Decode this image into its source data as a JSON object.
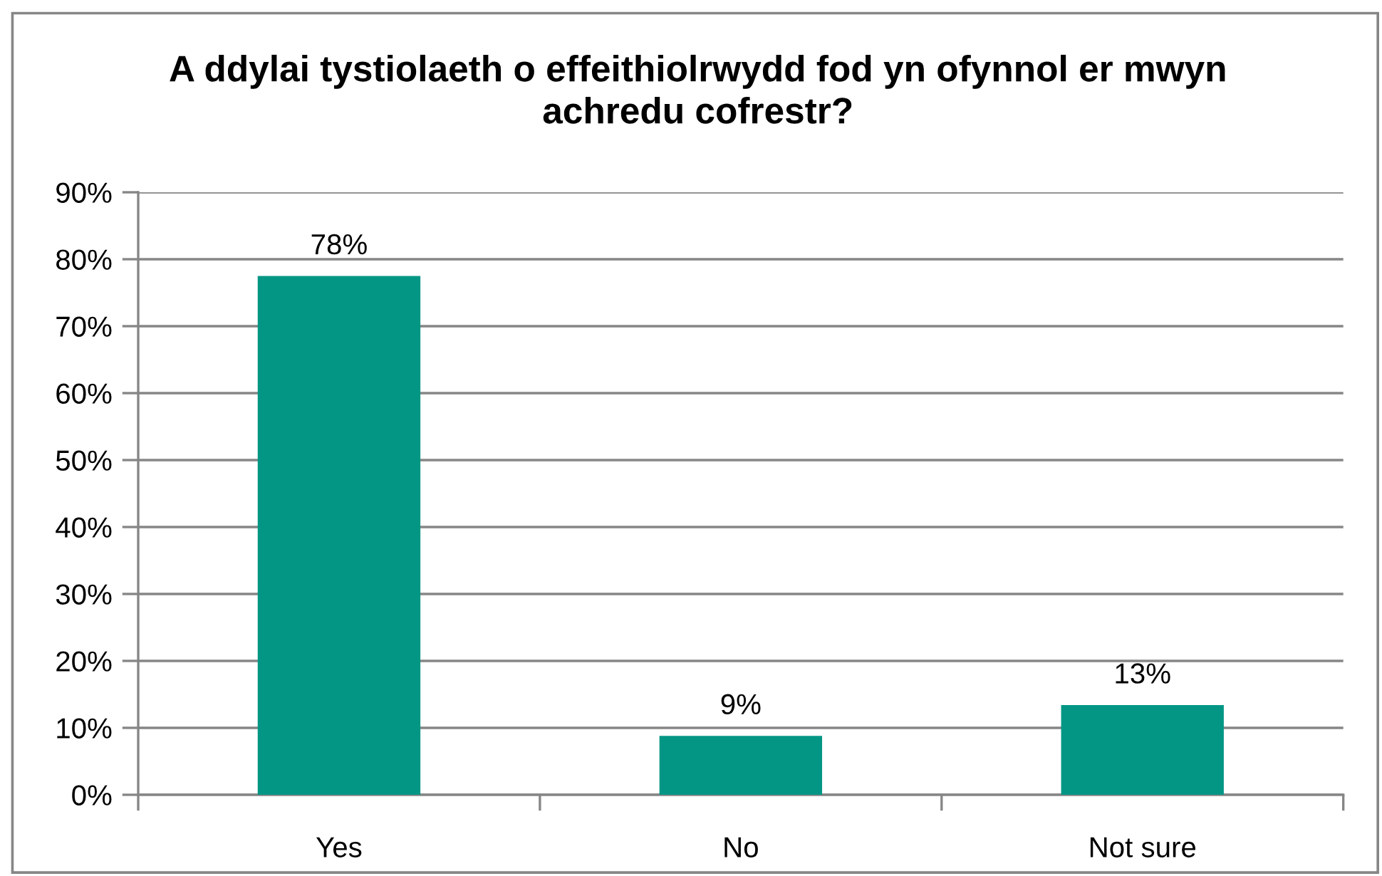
{
  "chart_data": {
    "type": "bar",
    "title": "A ddylai tystiolaeth o effeithiolrwydd fod yn ofynnol er mwyn\nachredu cofrestr?",
    "categories": [
      "Yes",
      "No",
      "Not sure"
    ],
    "values": [
      77.5,
      8.8,
      13.4
    ],
    "value_labels": [
      "78%",
      "9%",
      "13%"
    ],
    "color": "#049685",
    "ylim": [
      0,
      90
    ],
    "yticks": [
      {
        "value": 0,
        "label": "0%"
      },
      {
        "value": 10,
        "label": "10%"
      },
      {
        "value": 20,
        "label": "20%"
      },
      {
        "value": 30,
        "label": "30%"
      },
      {
        "value": 40,
        "label": "40%"
      },
      {
        "value": 50,
        "label": "50%"
      },
      {
        "value": 60,
        "label": "60%"
      },
      {
        "value": 70,
        "label": "70%"
      },
      {
        "value": 80,
        "label": "80%"
      },
      {
        "value": 90,
        "label": "90%"
      }
    ],
    "grid": "y"
  }
}
